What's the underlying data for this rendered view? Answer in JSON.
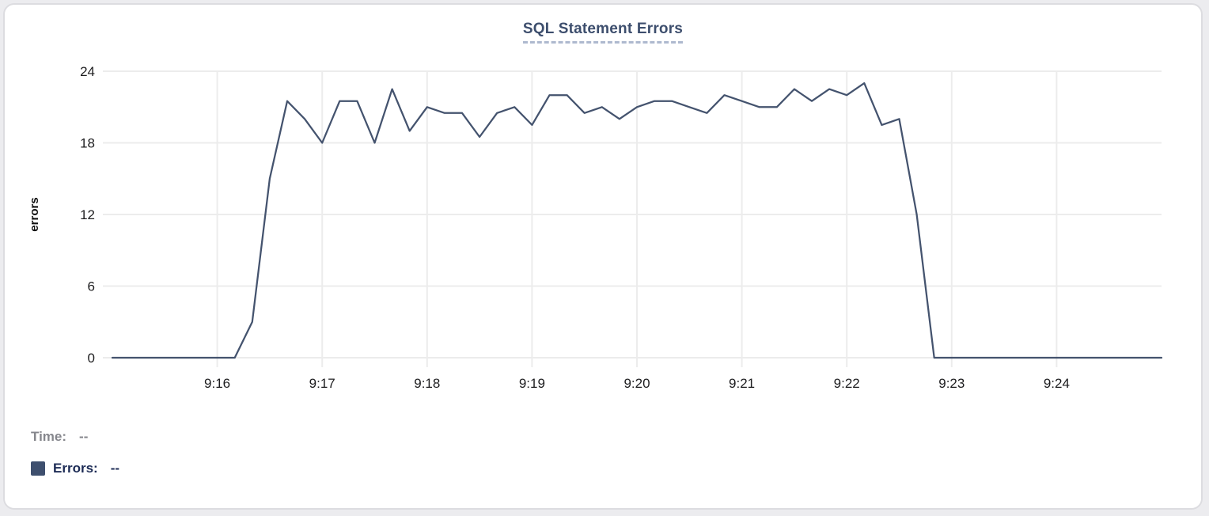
{
  "title": "SQL Statement Errors",
  "readout": {
    "time_label": "Time:",
    "time_value": "--",
    "errors_label": "Errors:",
    "errors_value": "--"
  },
  "colors": {
    "line": "#44536e",
    "swatch": "#3e4f6e",
    "title": "#3d4e6d",
    "title_underline": "#aeb9cf",
    "grid": "#ececec",
    "axis_text": "#1d1d1f",
    "ylabel_text": "#111111",
    "time_text": "#85868c",
    "errors_text": "#1c2b55"
  },
  "chart_data": {
    "type": "line",
    "title": "SQL Statement Errors",
    "xlabel": "",
    "ylabel": "errors",
    "ylim": [
      0,
      24
    ],
    "y_ticks": [
      0,
      6,
      12,
      18,
      24
    ],
    "x_tick_labels": [
      "9:16",
      "9:17",
      "9:18",
      "9:19",
      "9:20",
      "9:21",
      "9:22",
      "9:23",
      "9:24"
    ],
    "x_start": "9:15:00",
    "x_end": "9:25:00",
    "sample_interval_seconds": 10,
    "grid": true,
    "legend_position": "bottom-left",
    "series": [
      {
        "name": "Errors",
        "color": "#44536e",
        "values": [
          0,
          0,
          0,
          0,
          0,
          0,
          0,
          0,
          3,
          15,
          21.5,
          20,
          18,
          21.5,
          21.5,
          18,
          22.5,
          19,
          21,
          20.5,
          20.5,
          18.5,
          20.5,
          21,
          19.5,
          22,
          22,
          20.5,
          21,
          20,
          21,
          21.5,
          21.5,
          21,
          20.5,
          22,
          21.5,
          21,
          21,
          22.5,
          21.5,
          22.5,
          22,
          23,
          19.5,
          20,
          12,
          0,
          0,
          0,
          0,
          0,
          0,
          0,
          0,
          0,
          0,
          0,
          0,
          0,
          0
        ]
      }
    ]
  }
}
